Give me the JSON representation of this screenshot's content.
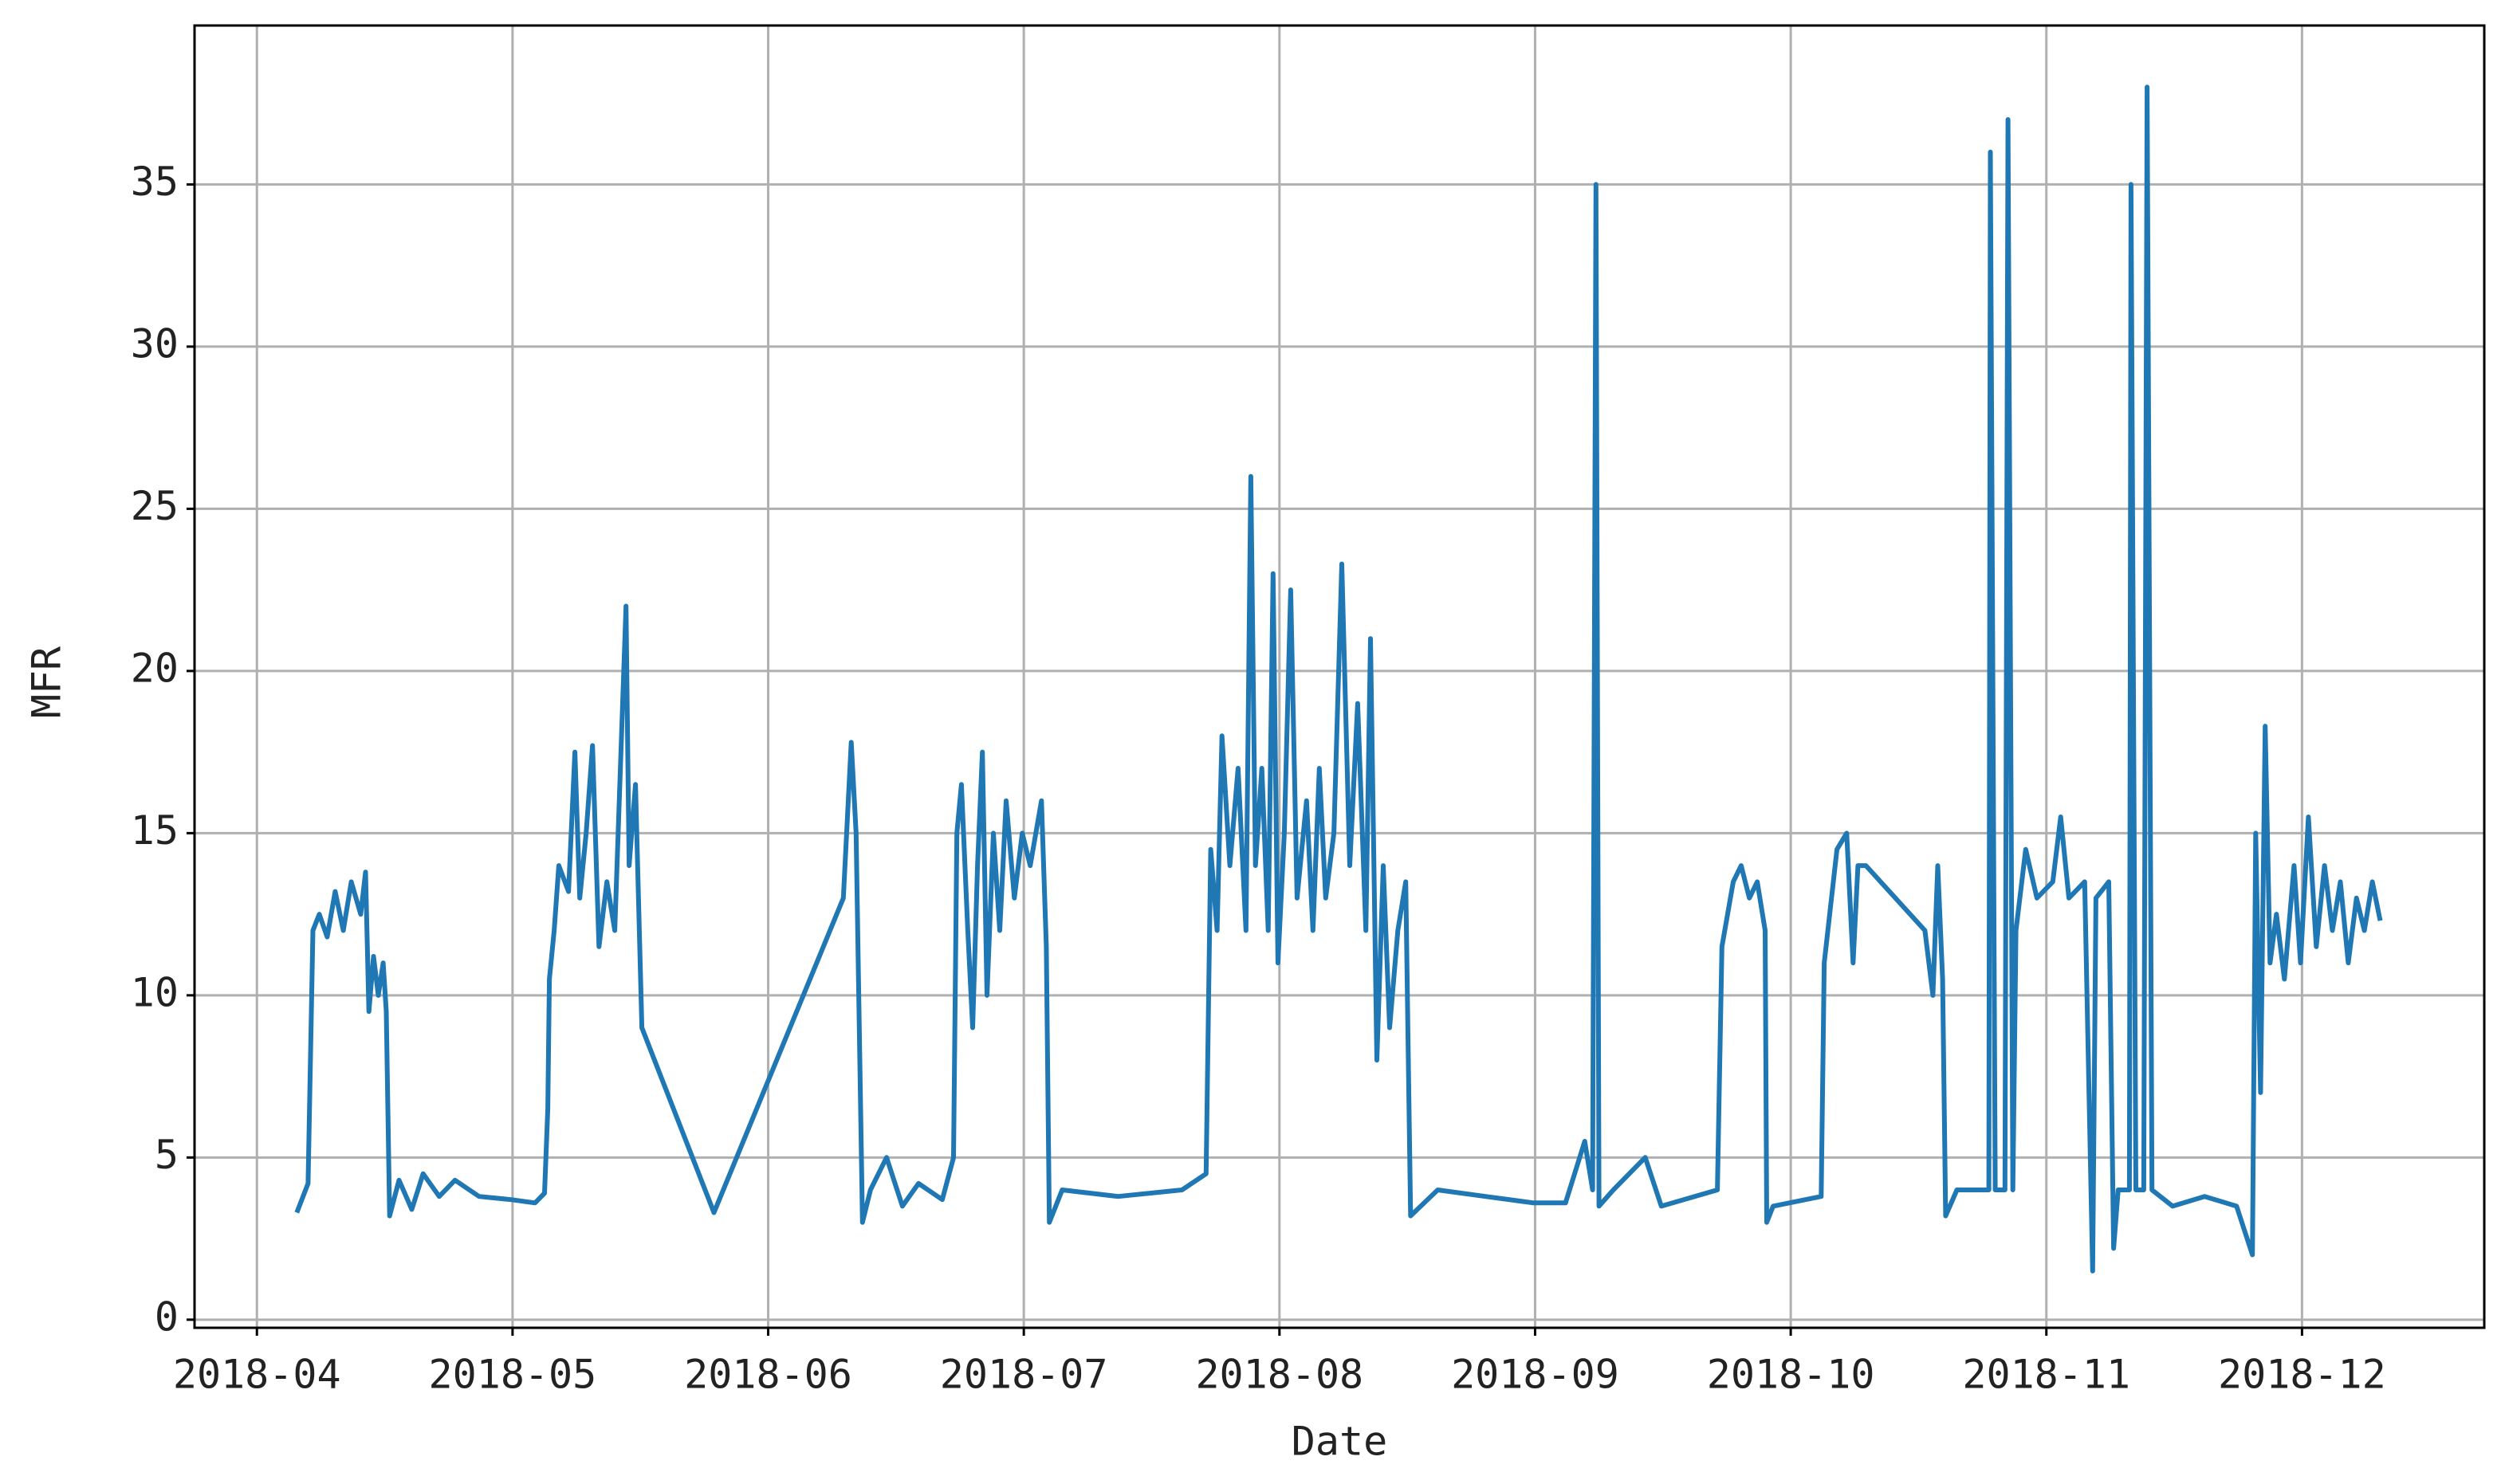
{
  "chart_data": {
    "type": "line",
    "xlabel": "Date",
    "ylabel": "MFR",
    "grid": true,
    "xlim": [
      3.756,
      12.713
    ],
    "ylim": [
      -0.25,
      39.9
    ],
    "xticks": [
      {
        "value": 4,
        "label": "2018-04"
      },
      {
        "value": 5,
        "label": "2018-05"
      },
      {
        "value": 6,
        "label": "2018-06"
      },
      {
        "value": 7,
        "label": "2018-07"
      },
      {
        "value": 8,
        "label": "2018-08"
      },
      {
        "value": 9,
        "label": "2018-09"
      },
      {
        "value": 10,
        "label": "2018-10"
      },
      {
        "value": 11,
        "label": "2018-11"
      },
      {
        "value": 12,
        "label": "2018-12"
      }
    ],
    "yticks": [
      0,
      5,
      10,
      15,
      20,
      25,
      30,
      35
    ],
    "series": [
      {
        "color": "#1f77b4",
        "x": [
          4.156,
          4.2,
          4.219,
          4.244,
          4.275,
          4.306,
          4.338,
          4.369,
          4.406,
          4.425,
          4.438,
          4.456,
          4.475,
          4.494,
          4.506,
          4.519,
          4.556,
          4.606,
          4.65,
          4.713,
          4.775,
          4.869,
          4.994,
          5.088,
          5.125,
          5.138,
          5.144,
          5.163,
          5.181,
          5.219,
          5.244,
          5.263,
          5.288,
          5.313,
          5.338,
          5.369,
          5.4,
          5.444,
          5.456,
          5.481,
          5.506,
          5.788,
          6.294,
          6.325,
          6.344,
          6.369,
          6.4,
          6.463,
          6.525,
          6.588,
          6.681,
          6.725,
          6.738,
          6.756,
          6.781,
          6.8,
          6.819,
          6.838,
          6.856,
          6.881,
          6.906,
          6.931,
          6.963,
          6.994,
          7.025,
          7.069,
          7.088,
          7.1,
          7.15,
          7.369,
          7.619,
          7.713,
          7.731,
          7.756,
          7.775,
          7.806,
          7.838,
          7.869,
          7.888,
          7.906,
          7.931,
          7.956,
          7.975,
          7.994,
          8.019,
          8.044,
          8.069,
          8.106,
          8.131,
          8.156,
          8.181,
          8.213,
          8.244,
          8.275,
          8.306,
          8.338,
          8.356,
          8.381,
          8.406,
          8.431,
          8.463,
          8.494,
          8.513,
          8.619,
          8.806,
          8.994,
          9.119,
          9.194,
          9.225,
          9.238,
          9.25,
          9.306,
          9.431,
          9.494,
          9.713,
          9.731,
          9.775,
          9.806,
          9.838,
          9.869,
          9.9,
          9.906,
          9.931,
          10.119,
          10.131,
          10.181,
          10.219,
          10.244,
          10.263,
          10.294,
          10.525,
          10.556,
          10.575,
          10.594,
          10.606,
          10.65,
          10.775,
          10.781,
          10.8,
          10.838,
          10.85,
          10.869,
          10.881,
          10.919,
          10.963,
          11.025,
          11.056,
          11.088,
          11.15,
          11.181,
          11.194,
          11.244,
          11.263,
          11.281,
          11.325,
          11.331,
          11.35,
          11.381,
          11.394,
          11.413,
          11.494,
          11.619,
          11.744,
          11.806,
          11.819,
          11.838,
          11.856,
          11.875,
          11.9,
          11.931,
          11.969,
          11.994,
          12.025,
          12.056,
          12.088,
          12.119,
          12.15,
          12.181,
          12.213,
          12.244,
          12.275,
          12.306
        ],
        "values": [
          3.3,
          4.2,
          12,
          12.5,
          11.8,
          13.2,
          12,
          13.5,
          12.5,
          13.8,
          9.5,
          11.2,
          10,
          11,
          9.5,
          3.2,
          4.3,
          3.4,
          4.5,
          3.8,
          4.3,
          3.8,
          3.7,
          3.6,
          3.9,
          6.5,
          10.5,
          12,
          14,
          13.2,
          17.5,
          13,
          15,
          17.7,
          11.5,
          13.5,
          12,
          22,
          14,
          16.5,
          9,
          3.3,
          13,
          17.8,
          15,
          3,
          4,
          5,
          3.5,
          4.2,
          3.7,
          5,
          15,
          16.5,
          12,
          9,
          14,
          17.5,
          10,
          15,
          12,
          16,
          13,
          15,
          14,
          16,
          11.5,
          3,
          4,
          3.8,
          4,
          4.5,
          14.5,
          12,
          18,
          14,
          17,
          12,
          26,
          14,
          17,
          12,
          23,
          11,
          15,
          22.5,
          13,
          16,
          12,
          17,
          13,
          15,
          23.3,
          14,
          19,
          12,
          21,
          8,
          14,
          9,
          12,
          13.5,
          3.2,
          4,
          3.8,
          3.6,
          3.6,
          5.5,
          4,
          35,
          3.5,
          4,
          5,
          3.5,
          4,
          11.5,
          13.5,
          14,
          13,
          13.5,
          12,
          3,
          3.5,
          3.8,
          11,
          14.5,
          15,
          11,
          14,
          14,
          12,
          10,
          14,
          10.5,
          3.2,
          4,
          4,
          36,
          4,
          4,
          37,
          4,
          12,
          14.5,
          13,
          13.5,
          15.5,
          13,
          13.5,
          1.5,
          13,
          13.5,
          2.2,
          4,
          4,
          35,
          4,
          4,
          38,
          4,
          3.5,
          3.8,
          3.5,
          2,
          15,
          7,
          18.3,
          11,
          12.5,
          10.5,
          14,
          11,
          15.5,
          11.5,
          14,
          12,
          13.5,
          11,
          13,
          12,
          13.5,
          12.3
        ]
      }
    ]
  }
}
